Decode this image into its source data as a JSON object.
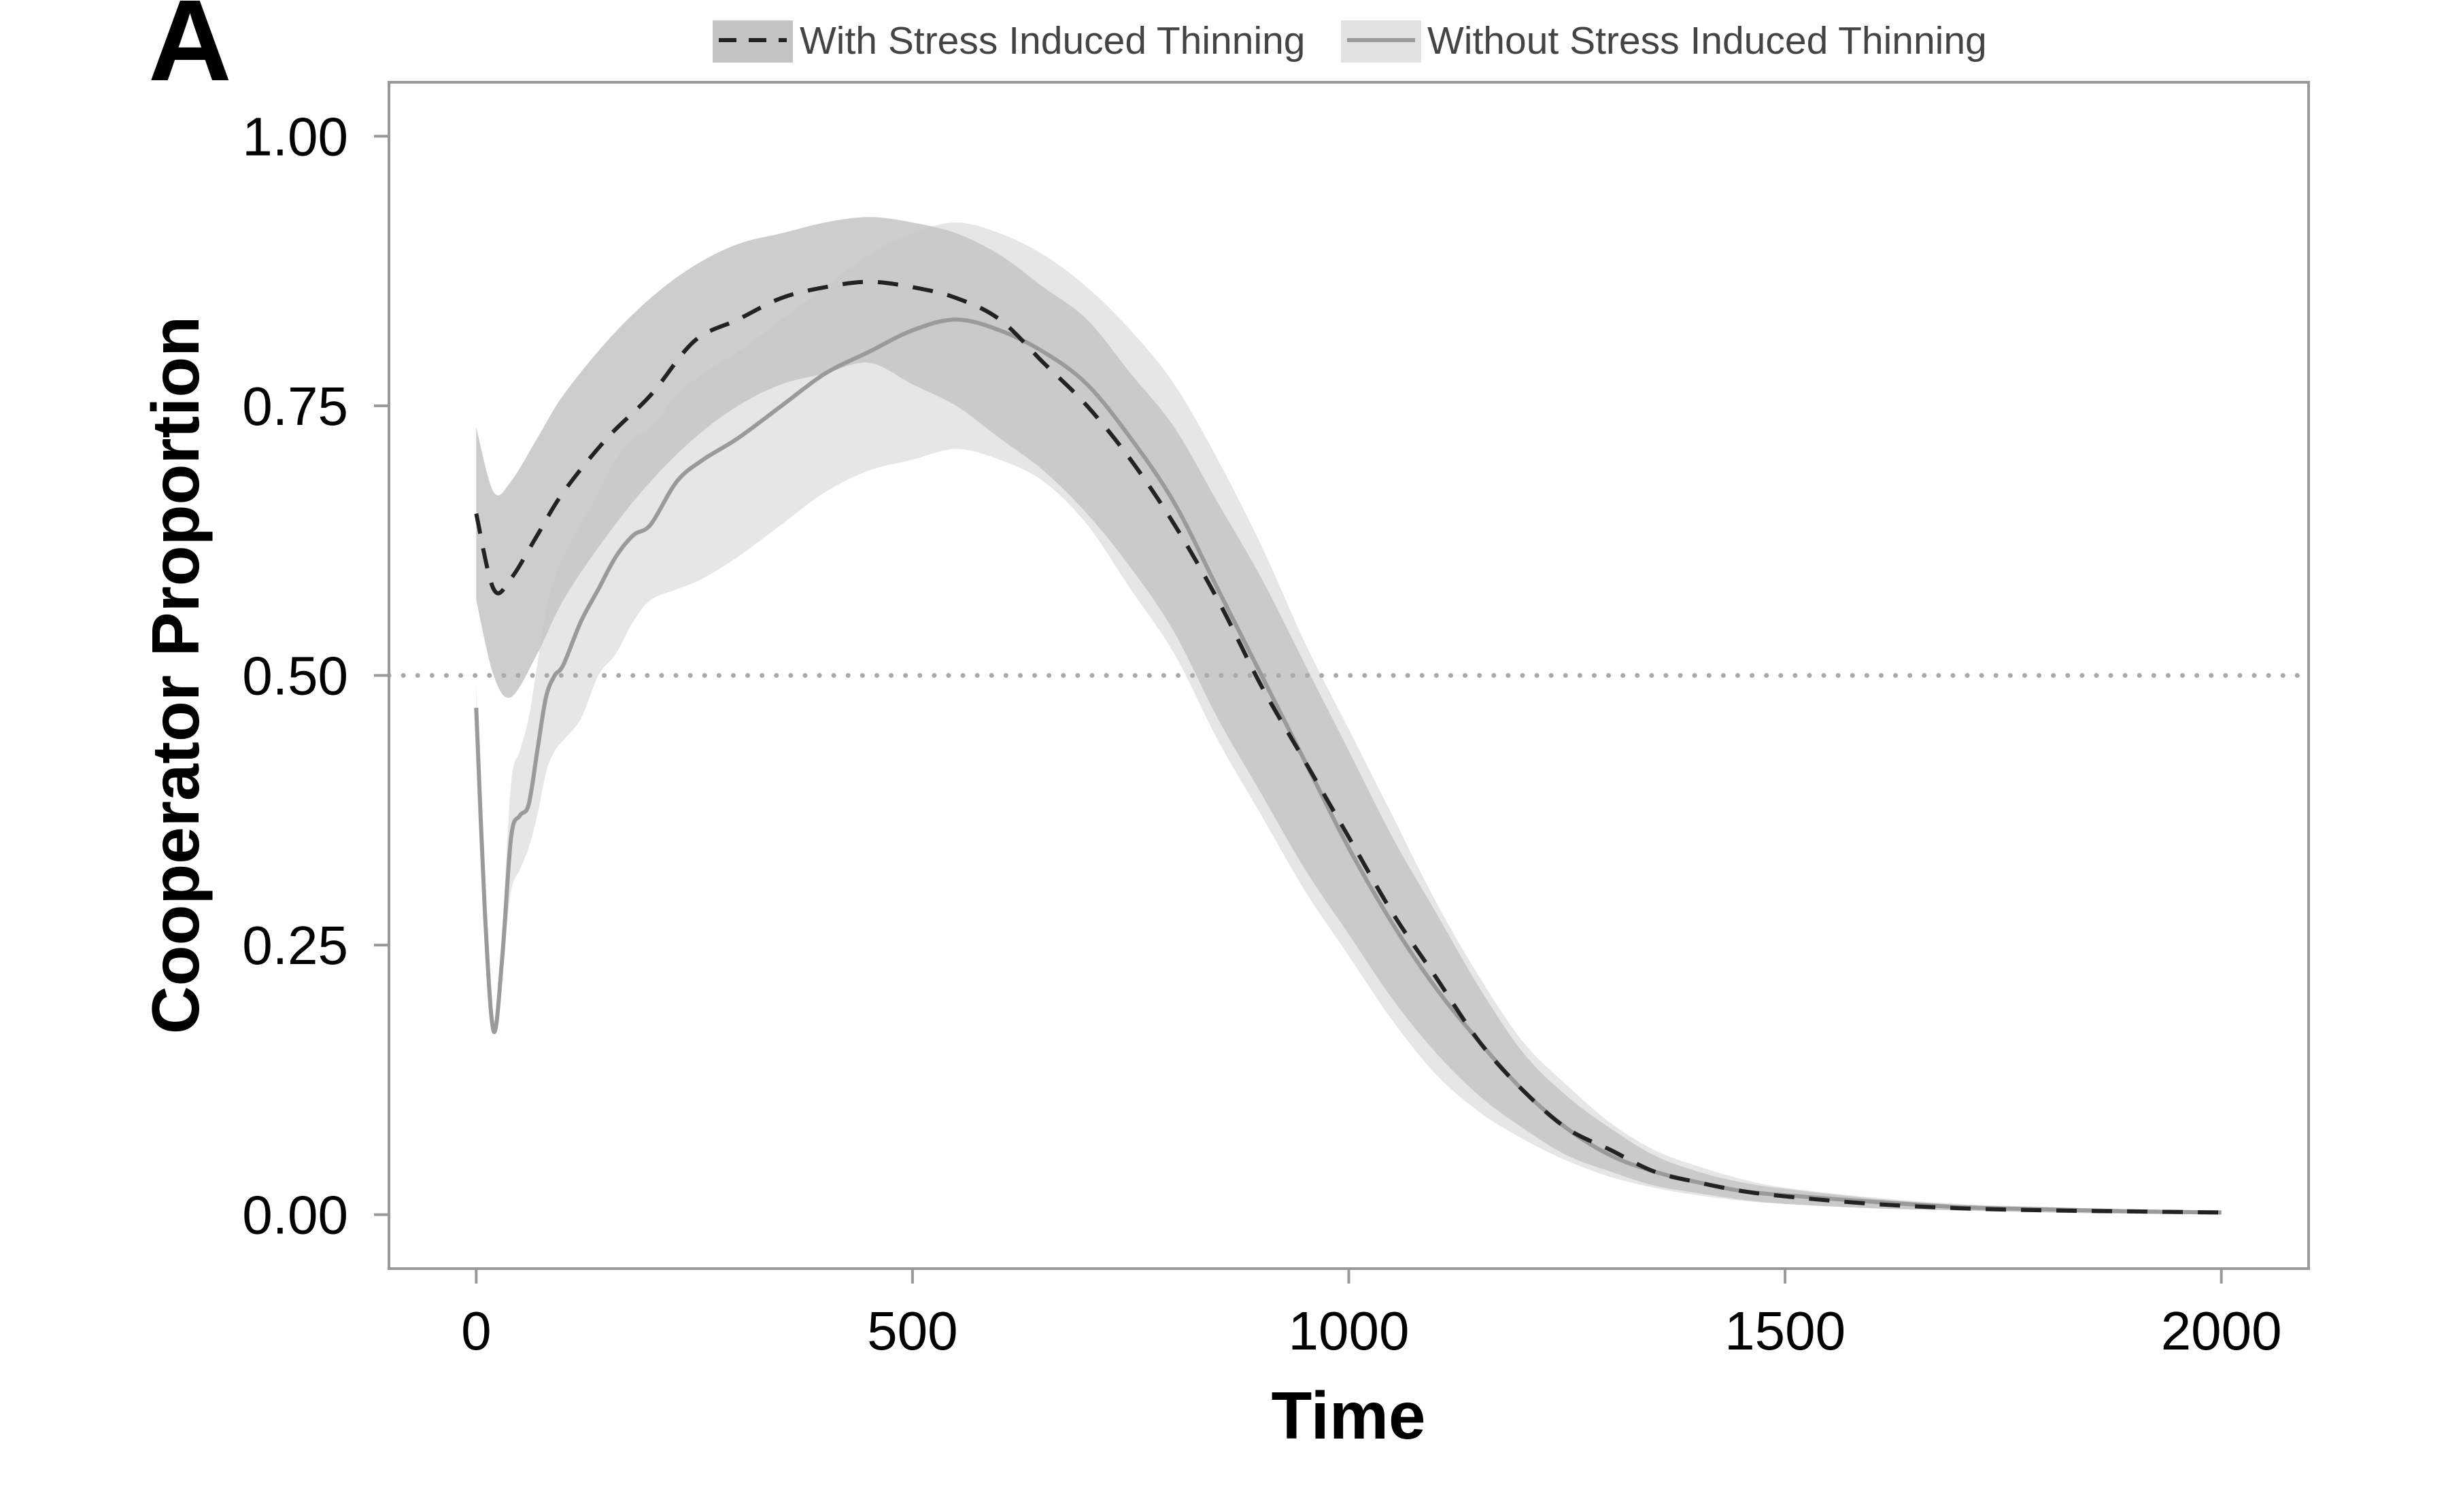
{
  "panel_label": "A",
  "chart_data": {
    "type": "line",
    "xlabel": "Time",
    "ylabel": "Cooperator Proportion",
    "xlim": [
      -100,
      2100
    ],
    "ylim": [
      -0.05,
      1.05
    ],
    "x_ticks": [
      0,
      500,
      1000,
      1500,
      2000
    ],
    "x_tick_labels": [
      "0",
      "500",
      "1000",
      "1500",
      "2000"
    ],
    "y_ticks": [
      0,
      0.25,
      0.5,
      0.75,
      1.0
    ],
    "y_tick_labels": [
      "0.00",
      "0.25",
      "0.50",
      "0.75",
      "1.00"
    ],
    "reference_line": {
      "y": 0.5,
      "style": "dotted"
    },
    "grid": false,
    "legend_position": "top",
    "colors": {
      "with_line": "#222222",
      "with_band": "#c4c4c4",
      "without_line": "#9a9a9a",
      "without_band": "#e2e2e2",
      "frame": "#999999",
      "reference": "#aaaaaa"
    },
    "series": [
      {
        "name": "With Stress Induced Thinning",
        "line_style": "dashed",
        "x": [
          0,
          20,
          40,
          70,
          100,
          150,
          200,
          250,
          300,
          350,
          400,
          450,
          500,
          550,
          600,
          650,
          700,
          750,
          800,
          850,
          900,
          950,
          1000,
          1050,
          1100,
          1150,
          1200,
          1250,
          1300,
          1350,
          1400,
          1450,
          1500,
          1600,
          1700,
          1800,
          1900,
          2000
        ],
        "y": [
          0.65,
          0.58,
          0.59,
          0.63,
          0.67,
          0.72,
          0.76,
          0.81,
          0.83,
          0.85,
          0.86,
          0.865,
          0.86,
          0.85,
          0.83,
          0.79,
          0.75,
          0.7,
          0.64,
          0.57,
          0.49,
          0.42,
          0.35,
          0.28,
          0.22,
          0.16,
          0.115,
          0.08,
          0.06,
          0.04,
          0.03,
          0.022,
          0.017,
          0.01,
          0.006,
          0.004,
          0.003,
          0.002
        ],
        "lower": [
          0.57,
          0.5,
          0.48,
          0.52,
          0.57,
          0.63,
          0.68,
          0.72,
          0.75,
          0.77,
          0.78,
          0.79,
          0.77,
          0.75,
          0.72,
          0.69,
          0.65,
          0.6,
          0.54,
          0.46,
          0.39,
          0.32,
          0.26,
          0.2,
          0.15,
          0.11,
          0.08,
          0.055,
          0.04,
          0.027,
          0.02,
          0.014,
          0.01,
          0.006,
          0.004,
          0.002,
          0.001,
          0.001
        ],
        "upper": [
          0.73,
          0.67,
          0.68,
          0.72,
          0.76,
          0.81,
          0.85,
          0.88,
          0.9,
          0.91,
          0.92,
          0.925,
          0.92,
          0.91,
          0.89,
          0.86,
          0.83,
          0.78,
          0.73,
          0.66,
          0.59,
          0.51,
          0.43,
          0.35,
          0.28,
          0.21,
          0.15,
          0.11,
          0.08,
          0.055,
          0.04,
          0.03,
          0.024,
          0.015,
          0.009,
          0.006,
          0.005,
          0.004
        ]
      },
      {
        "name": "Without Stress Induced Thinning",
        "line_style": "solid",
        "x": [
          0,
          10,
          20,
          30,
          40,
          50,
          60,
          70,
          80,
          90,
          100,
          120,
          140,
          160,
          180,
          200,
          230,
          260,
          300,
          350,
          400,
          450,
          500,
          550,
          600,
          650,
          700,
          750,
          800,
          850,
          900,
          950,
          1000,
          1050,
          1100,
          1150,
          1200,
          1250,
          1300,
          1350,
          1400,
          1450,
          1500,
          1600,
          1700,
          1800,
          1900,
          2000
        ],
        "y": [
          0.47,
          0.28,
          0.17,
          0.24,
          0.35,
          0.37,
          0.38,
          0.43,
          0.48,
          0.5,
          0.51,
          0.55,
          0.58,
          0.61,
          0.63,
          0.64,
          0.68,
          0.7,
          0.72,
          0.75,
          0.78,
          0.8,
          0.82,
          0.83,
          0.82,
          0.8,
          0.77,
          0.72,
          0.66,
          0.58,
          0.5,
          0.42,
          0.34,
          0.27,
          0.21,
          0.16,
          0.115,
          0.08,
          0.055,
          0.04,
          0.03,
          0.022,
          0.018,
          0.012,
          0.007,
          0.005,
          0.003,
          0.002
        ],
        "lower": [
          0.45,
          0.27,
          0.17,
          0.23,
          0.3,
          0.32,
          0.34,
          0.37,
          0.41,
          0.43,
          0.44,
          0.46,
          0.5,
          0.52,
          0.55,
          0.57,
          0.58,
          0.59,
          0.61,
          0.64,
          0.67,
          0.69,
          0.7,
          0.71,
          0.7,
          0.68,
          0.64,
          0.58,
          0.52,
          0.44,
          0.37,
          0.3,
          0.24,
          0.18,
          0.13,
          0.095,
          0.07,
          0.05,
          0.035,
          0.025,
          0.018,
          0.013,
          0.01,
          0.006,
          0.004,
          0.003,
          0.002,
          0.001
        ],
        "upper": [
          0.49,
          0.3,
          0.18,
          0.27,
          0.4,
          0.43,
          0.46,
          0.51,
          0.56,
          0.59,
          0.61,
          0.64,
          0.67,
          0.7,
          0.72,
          0.73,
          0.76,
          0.78,
          0.8,
          0.83,
          0.86,
          0.89,
          0.91,
          0.92,
          0.91,
          0.89,
          0.86,
          0.82,
          0.77,
          0.7,
          0.62,
          0.53,
          0.45,
          0.37,
          0.29,
          0.22,
          0.16,
          0.12,
          0.085,
          0.06,
          0.045,
          0.033,
          0.025,
          0.016,
          0.01,
          0.007,
          0.005,
          0.004
        ]
      }
    ]
  }
}
